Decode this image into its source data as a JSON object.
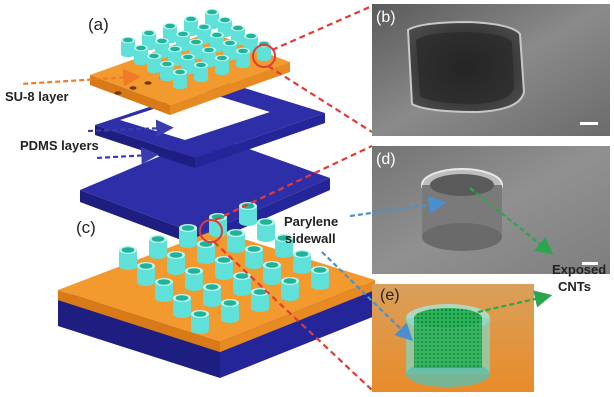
{
  "panels": {
    "a": "(a)",
    "b": "(b)",
    "c": "(c)",
    "d": "(d)",
    "e": "(e)"
  },
  "labels": {
    "su8_layer": "SU-8 layer",
    "pdms_layers": "PDMS layers",
    "parylene_line1": "Parylene",
    "parylene_line2": "sidewall",
    "exposed_line1": "Exposed",
    "exposed_line2": "CNTs"
  },
  "colors": {
    "su8_orange": "#f39a2e",
    "pdms_blue": "#2e2ea8",
    "pillar_cyan": "#5fe0d8",
    "pillar_fill": "#1fb39a",
    "callout_red": "#e23b35",
    "callout_blue": "#4a90d0",
    "callout_green": "#2ca64e",
    "su8_arrow": "#f07a2a",
    "pdms_arrow": "#3b3bb0"
  }
}
